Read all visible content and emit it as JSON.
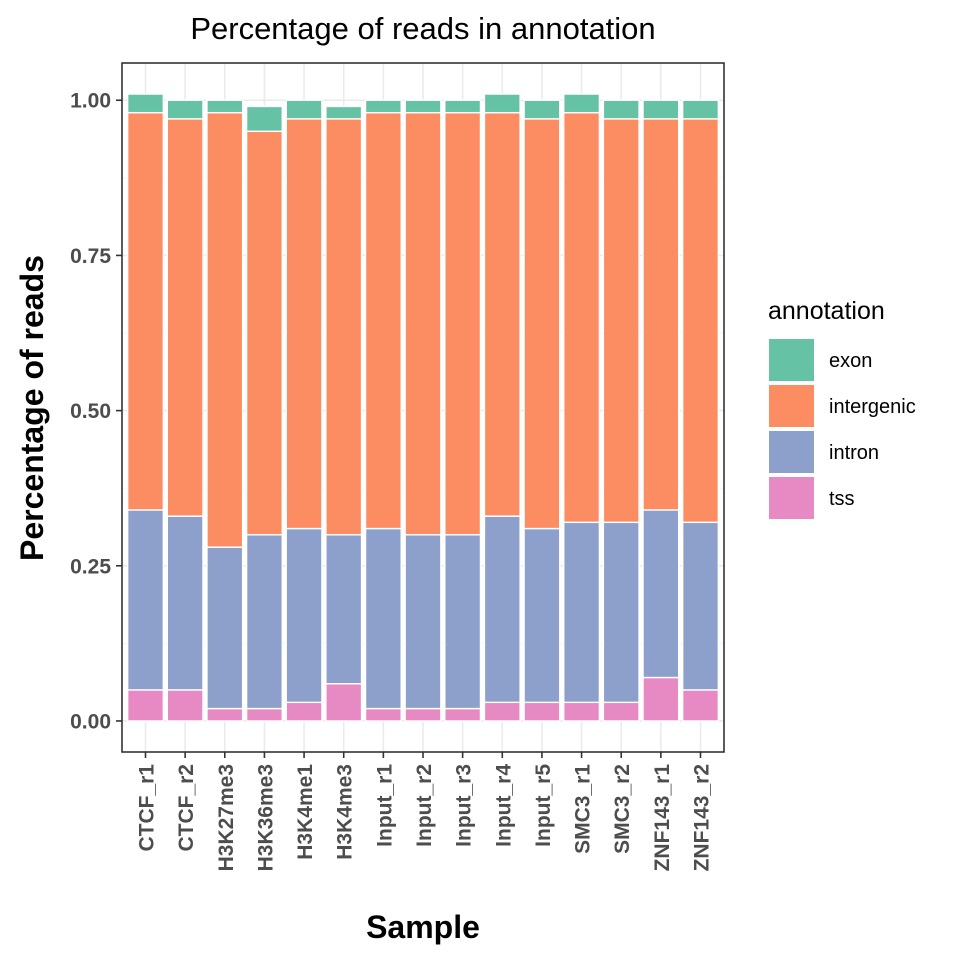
{
  "chart_data": {
    "type": "bar",
    "stacked": true,
    "title": "Percentage of reads in annotation",
    "xlabel": "Sample",
    "ylabel": "Percentage of reads",
    "ylim": [
      -0.05,
      1.06
    ],
    "yticks": [
      0,
      0.25,
      0.5,
      0.75,
      1.0
    ],
    "ytick_labels": [
      "0.00",
      "0.25",
      "0.50",
      "0.75",
      "1.00"
    ],
    "grid": true,
    "legend_position": "right",
    "legend_title": "annotation",
    "categories": [
      "CTCF_r1",
      "CTCF_r2",
      "H3K27me3",
      "H3K36me3",
      "H3K4me1",
      "H3K4me3",
      "Input_r1",
      "Input_r2",
      "Input_r3",
      "Input_r4",
      "Input_r5",
      "SMC3_r1",
      "SMC3_r2",
      "ZNF143_r1",
      "ZNF143_r2"
    ],
    "series": [
      {
        "name": "tss",
        "color": "#e78ac3",
        "values": [
          0.05,
          0.05,
          0.02,
          0.02,
          0.03,
          0.06,
          0.02,
          0.02,
          0.02,
          0.03,
          0.03,
          0.03,
          0.03,
          0.07,
          0.05
        ]
      },
      {
        "name": "intron",
        "color": "#8da0cb",
        "values": [
          0.29,
          0.28,
          0.26,
          0.28,
          0.28,
          0.24,
          0.29,
          0.28,
          0.28,
          0.3,
          0.28,
          0.29,
          0.29,
          0.27,
          0.27
        ]
      },
      {
        "name": "intergenic",
        "color": "#fc8d62",
        "values": [
          0.64,
          0.64,
          0.7,
          0.65,
          0.66,
          0.67,
          0.67,
          0.68,
          0.68,
          0.65,
          0.66,
          0.66,
          0.65,
          0.63,
          0.65
        ]
      },
      {
        "name": "exon",
        "color": "#66c2a5",
        "values": [
          0.03,
          0.03,
          0.02,
          0.04,
          0.03,
          0.02,
          0.02,
          0.02,
          0.02,
          0.03,
          0.03,
          0.03,
          0.03,
          0.03,
          0.03
        ]
      }
    ],
    "legend_order": [
      "exon",
      "intergenic",
      "intron",
      "tss"
    ]
  }
}
